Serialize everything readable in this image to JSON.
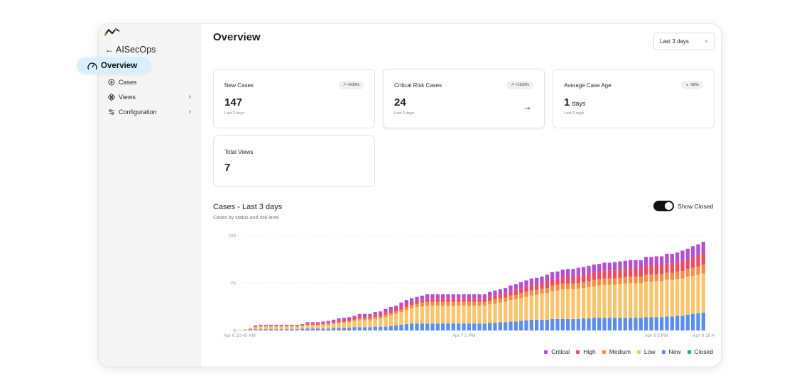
{
  "sidebar": {
    "back_label": "AISecOps",
    "items": [
      {
        "label": "Overview",
        "icon": "gauge-icon",
        "active": true
      },
      {
        "label": "Cases",
        "icon": "case-icon"
      },
      {
        "label": "Views",
        "icon": "views-icon",
        "has_submenu": true
      },
      {
        "label": "Configuration",
        "icon": "sliders-icon",
        "has_submenu": true
      }
    ]
  },
  "header": {
    "title": "Overview",
    "range_select": "Last 3 days"
  },
  "cards": [
    {
      "label": "New Cases",
      "value": "147",
      "sub": "Last 3 days",
      "delta": "+600%"
    },
    {
      "label": "Critical Risk Cases",
      "value": "24",
      "sub": "Last 3 days",
      "delta": "+1100%"
    },
    {
      "label": "Average Case Age",
      "value": "1",
      "unit": "days",
      "sub": "Last 3 days",
      "delta": "-68%"
    },
    {
      "label": "Total Views",
      "value": "7"
    }
  ],
  "chart_section": {
    "title": "Cases - Last 3 days",
    "subtitle": "Cases by status and risk level",
    "toggle_label": "Show Closed",
    "toggle_on": true
  },
  "colors": {
    "Critical": "#b44fd0",
    "High": "#ef4a5f",
    "Medium": "#f58d45",
    "Low": "#f8c56e",
    "New": "#5b8ded",
    "Closed": "#22b07d"
  },
  "chart_data": {
    "type": "bar",
    "stacked": true,
    "yticks": [
      0,
      75,
      150
    ],
    "ylim": [
      0,
      150
    ],
    "xtick_labels": [
      "Apr 6 10:45 AM",
      "Apr 7 5 PM",
      "Apr 8 5 PM",
      "Apr 9 10 A"
    ],
    "xtick_bar_index": [
      0,
      43,
      80,
      104
    ],
    "legend": [
      "Critical",
      "High",
      "Medium",
      "Low",
      "New",
      "Closed"
    ],
    "legend_position": "bottom-right",
    "grid": true,
    "series": [
      {
        "name": "New",
        "values": [
          0,
          1,
          2,
          2,
          2,
          2,
          2,
          2,
          2,
          2,
          2,
          2,
          3,
          3,
          3,
          3,
          3,
          3,
          4,
          4,
          4,
          4,
          5,
          5,
          5,
          5,
          6,
          6,
          6,
          7,
          8,
          9,
          10,
          11,
          11,
          11,
          11,
          11,
          11,
          11,
          11,
          11,
          11,
          11,
          11,
          11,
          11,
          11,
          12,
          12,
          13,
          13,
          14,
          14,
          15,
          16,
          17,
          17,
          17,
          17,
          18,
          18,
          18,
          18,
          18,
          18,
          19,
          19,
          20,
          20,
          20,
          20,
          20,
          20,
          20,
          20,
          20,
          20,
          21,
          21,
          21,
          21,
          22,
          22,
          23,
          23,
          25,
          26,
          27,
          28
        ]
      },
      {
        "name": "Low",
        "values": [
          1,
          1,
          2,
          3,
          4,
          4,
          4,
          4,
          4,
          4,
          4,
          4,
          4,
          5,
          5,
          5,
          6,
          6,
          6,
          7,
          8,
          9,
          10,
          11,
          11,
          11,
          12,
          13,
          15,
          17,
          18,
          20,
          22,
          24,
          26,
          27,
          28,
          28,
          28,
          28,
          28,
          28,
          28,
          28,
          28,
          28,
          28,
          28,
          29,
          30,
          31,
          32,
          34,
          35,
          36,
          37,
          38,
          39,
          41,
          42,
          44,
          45,
          47,
          47,
          47,
          48,
          48,
          49,
          50,
          51,
          52,
          52,
          52,
          53,
          54,
          55,
          55,
          55,
          56,
          56,
          57,
          57,
          58,
          58,
          58,
          59,
          60,
          60,
          61,
          62
        ]
      },
      {
        "name": "Medium",
        "values": [
          0,
          0,
          0,
          1,
          1,
          1,
          1,
          1,
          1,
          1,
          1,
          1,
          1,
          1,
          1,
          1,
          1,
          2,
          2,
          2,
          2,
          2,
          2,
          3,
          3,
          3,
          3,
          3,
          4,
          4,
          4,
          4,
          5,
          5,
          5,
          6,
          6,
          6,
          6,
          6,
          6,
          6,
          6,
          6,
          6,
          6,
          6,
          6,
          6,
          7,
          7,
          7,
          7,
          7,
          8,
          8,
          8,
          8,
          8,
          8,
          9,
          9,
          9,
          9,
          9,
          9,
          9,
          10,
          10,
          10,
          10,
          10,
          10,
          10,
          10,
          10,
          10,
          10,
          11,
          11,
          11,
          11,
          11,
          11,
          12,
          12,
          12,
          13,
          13,
          14
        ]
      },
      {
        "name": "High",
        "values": [
          0,
          0,
          0,
          1,
          1,
          1,
          1,
          1,
          1,
          1,
          1,
          1,
          1,
          2,
          2,
          2,
          2,
          2,
          2,
          3,
          3,
          3,
          3,
          3,
          3,
          3,
          4,
          4,
          4,
          4,
          4,
          5,
          5,
          5,
          5,
          5,
          5,
          5,
          5,
          5,
          5,
          5,
          5,
          5,
          5,
          5,
          5,
          5,
          6,
          6,
          6,
          7,
          7,
          8,
          8,
          8,
          9,
          9,
          9,
          10,
          10,
          10,
          11,
          11,
          11,
          12,
          12,
          12,
          12,
          12,
          13,
          13,
          13,
          13,
          13,
          13,
          13,
          13,
          14,
          14,
          14,
          14,
          15,
          15,
          15,
          16,
          16,
          17,
          17,
          18
        ]
      },
      {
        "name": "Critical",
        "values": [
          0,
          0,
          0,
          1,
          1,
          1,
          1,
          1,
          1,
          1,
          1,
          1,
          1,
          2,
          2,
          2,
          2,
          2,
          3,
          3,
          3,
          3,
          3,
          4,
          4,
          4,
          4,
          4,
          5,
          5,
          5,
          6,
          6,
          6,
          6,
          6,
          7,
          7,
          7,
          7,
          7,
          7,
          7,
          7,
          7,
          7,
          7,
          7,
          8,
          8,
          8,
          8,
          9,
          9,
          9,
          10,
          10,
          10,
          10,
          11,
          11,
          11,
          11,
          12,
          12,
          12,
          12,
          12,
          12,
          12,
          12,
          12,
          13,
          13,
          13,
          13,
          13,
          13,
          14,
          14,
          14,
          14,
          15,
          15,
          15,
          16,
          16,
          17,
          18,
          18
        ]
      }
    ]
  }
}
